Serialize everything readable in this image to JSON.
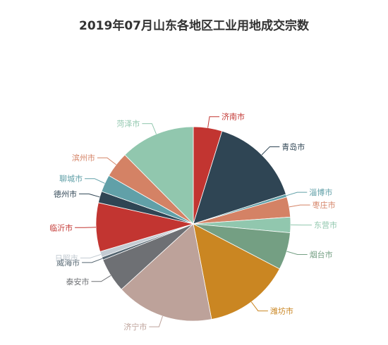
{
  "chart_data": {
    "type": "pie",
    "title": "2019年07月山东各地区工业用地成交宗数",
    "slices": [
      {
        "name": "济南市",
        "value": 5,
        "color": "#c23531"
      },
      {
        "name": "青岛市",
        "value": 16,
        "color": "#2f4554"
      },
      {
        "name": "淄博市",
        "value": 0.5,
        "color": "#61a0a8"
      },
      {
        "name": "枣庄市",
        "value": 3.5,
        "color": "#d48265"
      },
      {
        "name": "东营市",
        "value": 2.7,
        "color": "#91c7ae"
      },
      {
        "name": "烟台市",
        "value": 6.5,
        "color": "#749f83"
      },
      {
        "name": "潍坊市",
        "value": 15,
        "color": "#ca8622"
      },
      {
        "name": "济宁市",
        "value": 17,
        "color": "#bda29a"
      },
      {
        "name": "泰安市",
        "value": 6,
        "color": "#6e7074"
      },
      {
        "name": "威海市",
        "value": 0.5,
        "color": "#546570"
      },
      {
        "name": "日照市",
        "value": 1,
        "color": "#c4ccd3"
      },
      {
        "name": "临沂市",
        "value": 8.5,
        "color": "#c23531"
      },
      {
        "name": "德州市",
        "value": 2,
        "color": "#2f4554"
      },
      {
        "name": "聊城市",
        "value": 3,
        "color": "#61a0a8"
      },
      {
        "name": "滨州市",
        "value": 4.5,
        "color": "#d48265"
      },
      {
        "name": "菏泽市",
        "value": 13,
        "color": "#91c7ae"
      }
    ]
  }
}
